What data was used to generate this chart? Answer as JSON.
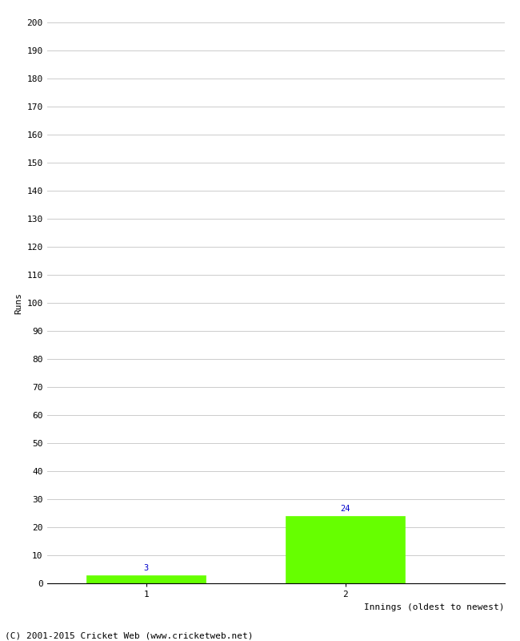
{
  "title": "",
  "categories": [
    1,
    2
  ],
  "values": [
    3,
    24
  ],
  "bar_color": "#66ff00",
  "bar_edge_color": "#66ff00",
  "ylabel": "Runs",
  "xlabel": "Innings (oldest to newest)",
  "ylim": [
    0,
    200
  ],
  "yticks": [
    0,
    10,
    20,
    30,
    40,
    50,
    60,
    70,
    80,
    90,
    100,
    110,
    120,
    130,
    140,
    150,
    160,
    170,
    180,
    190,
    200
  ],
  "xticks": [
    1,
    2
  ],
  "xlim": [
    0.5,
    2.8
  ],
  "annotation_color": "#0000cc",
  "annotation_fontsize": 7.5,
  "grid_color": "#cccccc",
  "background_color": "#ffffff",
  "footer_text": "(C) 2001-2015 Cricket Web (www.cricketweb.net)",
  "footer_fontsize": 8,
  "bar_width": 0.6,
  "tick_fontsize": 8,
  "ylabel_fontsize": 8,
  "xlabel_fontsize": 8
}
